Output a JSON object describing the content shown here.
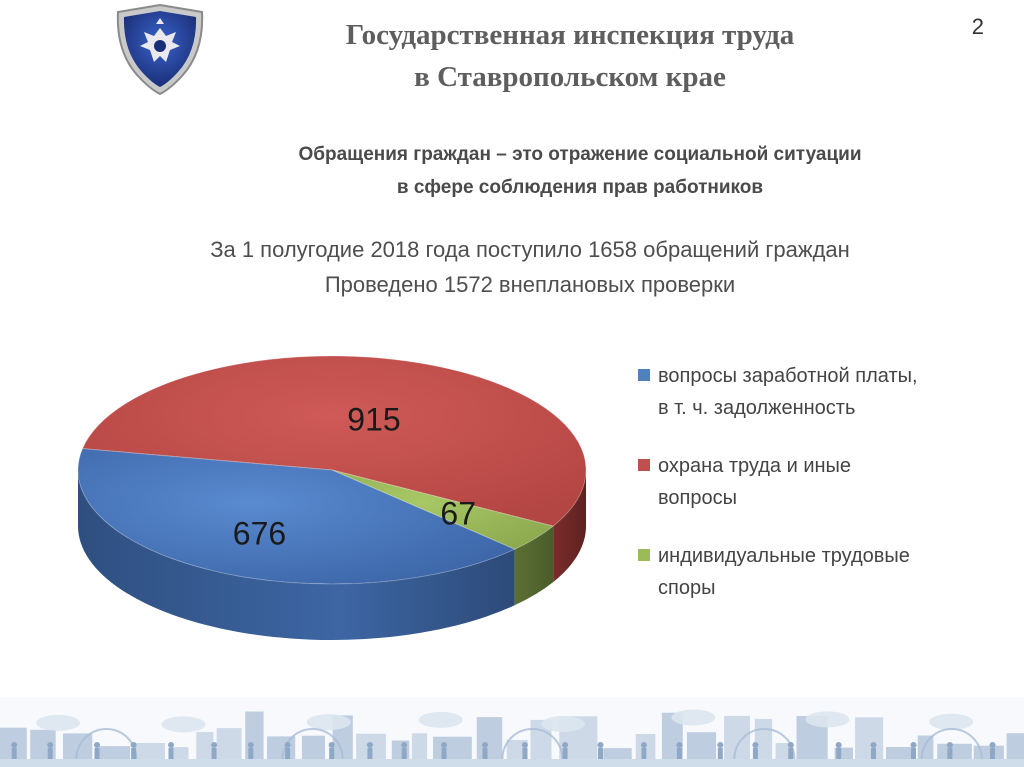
{
  "header": {
    "title_line1": "Государственная инспекция труда",
    "title_line2": "в Ставропольском крае",
    "page_number": "2"
  },
  "subtitle": {
    "line1": "Обращения граждан – это отражение социальной ситуации",
    "line2": "в сфере соблюдения прав работников"
  },
  "stats": {
    "line1": "За 1 полугодие 2018 года  поступило 1658 обращений граждан",
    "line2": "Проведено  1572 внеплановых проверки"
  },
  "colors": {
    "series_wages": "#4f81bd",
    "series_labor": "#c0504d",
    "series_disputes": "#9bbb59"
  },
  "chart_data": {
    "type": "pie",
    "title": "",
    "categories": [
      "вопросы заработной платы, в т. ч. задолженность",
      "охрана труда и иные вопросы",
      "индивидуальные трудовые споры"
    ],
    "values": [
      676,
      915,
      67
    ],
    "data_labels": [
      "676",
      "915",
      "67"
    ],
    "legend_position": "right",
    "legend": [
      {
        "line1": "вопросы заработной платы,",
        "line2": "в т. ч. задолженность"
      },
      {
        "line1": "охрана труда и иные",
        "line2": "вопросы"
      },
      {
        "line1": "индивидуальные трудовые",
        "line2": "споры"
      }
    ]
  }
}
